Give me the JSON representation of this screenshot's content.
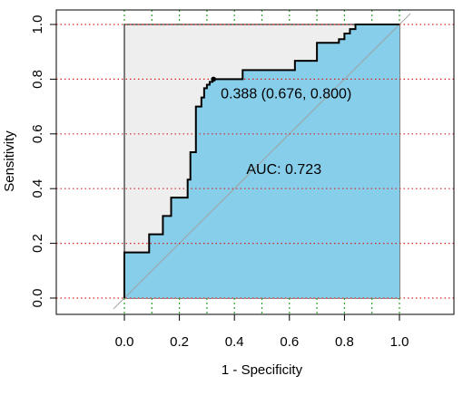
{
  "chart_data": {
    "type": "line",
    "title": "",
    "xlabel": "1 - Specificity",
    "ylabel": "Sensitivity",
    "xlim": [
      -0.2,
      1.2
    ],
    "ylim": [
      0,
      1
    ],
    "x_ticks": [
      0.0,
      0.2,
      0.4,
      0.6,
      0.8,
      1.0
    ],
    "x_tick_labels": [
      "0.0",
      "0.2",
      "0.4",
      "0.6",
      "0.8",
      "1.0"
    ],
    "y_ticks": [
      0.0,
      0.2,
      0.4,
      0.6,
      0.8,
      1.0
    ],
    "y_tick_labels": [
      "0.0",
      "0.2",
      "0.4",
      "0.6",
      "0.8",
      "1.0"
    ],
    "grid": {
      "vertical_x": [
        0.0,
        0.1,
        0.2,
        0.3,
        0.4,
        0.5,
        0.6,
        0.7,
        0.8,
        0.9,
        1.0
      ],
      "horizontal_y": [
        0.0,
        0.2,
        0.4,
        0.6,
        0.8,
        1.0
      ]
    },
    "series": [
      {
        "x": [
          0.0,
          0.0,
          0.09,
          0.09,
          0.14,
          0.14,
          0.17,
          0.17,
          0.23,
          0.23,
          0.24,
          0.24,
          0.26,
          0.26,
          0.28,
          0.28,
          0.29,
          0.29,
          0.3,
          0.3,
          0.31,
          0.31,
          0.32,
          0.32,
          0.43,
          0.43,
          0.62,
          0.62,
          0.7,
          0.7,
          0.78,
          0.78,
          0.8,
          0.8,
          0.82,
          0.82,
          0.84,
          0.84,
          1.0
        ],
        "y": [
          0.0,
          0.167,
          0.167,
          0.233,
          0.233,
          0.3,
          0.3,
          0.367,
          0.367,
          0.433,
          0.433,
          0.533,
          0.533,
          0.7,
          0.7,
          0.733,
          0.733,
          0.767,
          0.767,
          0.78,
          0.78,
          0.79,
          0.79,
          0.8,
          0.8,
          0.833,
          0.833,
          0.867,
          0.867,
          0.933,
          0.933,
          0.946,
          0.946,
          0.967,
          0.967,
          0.983,
          0.983,
          1.0,
          1.0
        ]
      }
    ],
    "auc_label": "AUC: 0.723",
    "auc_label_at": [
      0.58,
      0.47
    ],
    "threshold": {
      "x": 0.324,
      "y": 0.8,
      "label": "0.388 (0.676, 0.800)"
    },
    "colors": {
      "auc_fill": "#87ceeb",
      "outside_fill": "#eeeeee",
      "curve": "#000000",
      "diagonal": "#a0a0a0",
      "grid_horizontal": "#d62728",
      "grid_vertical": "#2ca02c"
    }
  }
}
